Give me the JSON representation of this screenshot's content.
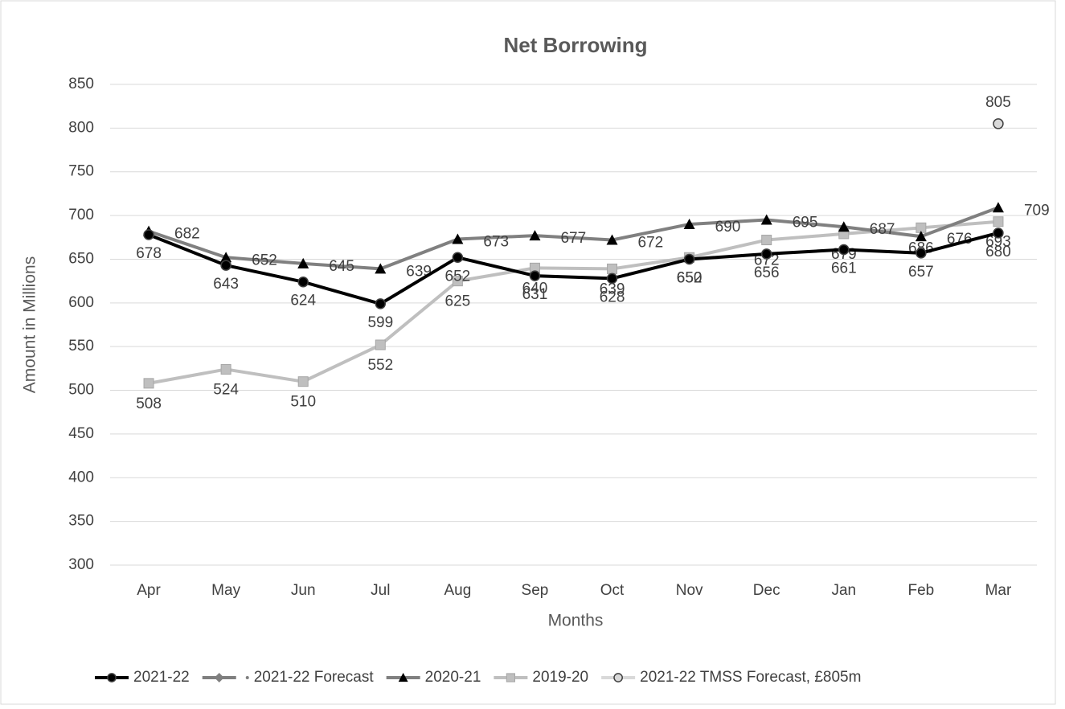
{
  "chart_data": {
    "type": "line",
    "title": "Net Borrowing",
    "x_label": "Months",
    "y_label": "Amount in  Millions",
    "categories": [
      "Apr",
      "May",
      "Jun",
      "Jul",
      "Aug",
      "Sep",
      "Oct",
      "Nov",
      "Dec",
      "Jan",
      "Feb",
      "Mar"
    ],
    "series": [
      {
        "name": "2021-22",
        "color": "#000000",
        "marker": "circle",
        "values": [
          678,
          643,
          624,
          599,
          652,
          631,
          628,
          650,
          656,
          661,
          657,
          680
        ]
      },
      {
        "name": "2021-22 Forecast",
        "color": "#7f7f7f",
        "marker": "diamond",
        "values": [
          null,
          null,
          null,
          null,
          null,
          null,
          null,
          null,
          null,
          null,
          null,
          null
        ]
      },
      {
        "name": "2020-21",
        "color": "#808080",
        "marker": "triangle",
        "values": [
          682,
          652,
          645,
          639,
          673,
          677,
          672,
          690,
          695,
          687,
          676,
          709
        ]
      },
      {
        "name": "2019-20",
        "color": "#bfbfbf",
        "marker": "square",
        "values": [
          508,
          524,
          510,
          552,
          625,
          640,
          639,
          652,
          672,
          679,
          686,
          693
        ]
      },
      {
        "name": "2021-22 TMSS Forecast, £805m",
        "color": "#d9d9d9",
        "marker": "circle",
        "values": [
          null,
          null,
          null,
          null,
          null,
          null,
          null,
          null,
          null,
          null,
          null,
          805
        ]
      }
    ],
    "ylim": [
      300,
      850
    ],
    "yticks": [
      300,
      350,
      400,
      450,
      500,
      550,
      600,
      650,
      700,
      750,
      800,
      850
    ],
    "grid": true,
    "legend": "bottom"
  }
}
